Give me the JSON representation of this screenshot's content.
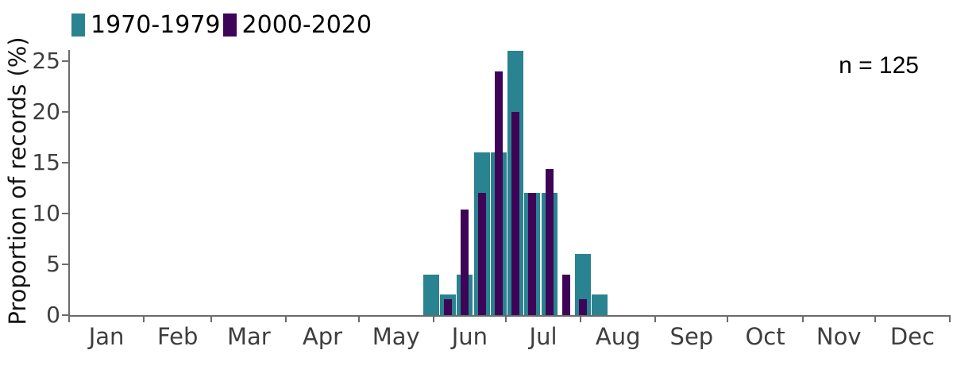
{
  "figure": {
    "ylabel": "Proportion of records (%)",
    "annotation": "n = 125"
  },
  "legend": {
    "items": [
      {
        "label": "1970-1979",
        "color": "#2a8390"
      },
      {
        "label": "2000-2020",
        "color": "#3e0458"
      }
    ]
  },
  "chart_data": {
    "type": "bar",
    "title": "",
    "xlabel": "",
    "ylabel": "Proportion of records (%)",
    "annotation": "n = 125",
    "legend_position": "top-left",
    "grid": false,
    "x_axis": "day of year (Jan–Dec), weekly bins",
    "x_bin_center_days": [
      151,
      158,
      165,
      172,
      179,
      186,
      193,
      200,
      207,
      214,
      221
    ],
    "x_bin_width_days": 7,
    "series": [
      {
        "name": "1970-1979",
        "color": "#2a8390",
        "values": [
          4,
          2,
          4,
          16,
          16,
          26,
          12,
          12,
          0,
          6,
          2
        ]
      },
      {
        "name": "2000-2020",
        "color": "#3e0458",
        "values": [
          0,
          1.6,
          10.4,
          12,
          24,
          20,
          12,
          14.4,
          4,
          1.6,
          0
        ]
      }
    ],
    "y_ticks": [
      0,
      5,
      10,
      15,
      20,
      25
    ],
    "ylim": [
      0,
      26.2
    ],
    "x_tick_days": [
      1,
      32,
      60,
      91,
      121,
      152,
      182,
      213,
      244,
      274,
      305,
      335,
      366
    ],
    "x_tick_labels": [
      "Jan",
      "Feb",
      "Mar",
      "Apr",
      "May",
      "Jun",
      "Jul",
      "Aug",
      "Sep",
      "Oct",
      "Nov",
      "Dec"
    ]
  },
  "colors": {
    "axis": "#6b6b6b",
    "tick_label": "#3e3e3e",
    "ytitle": "#141414",
    "text": "#000000",
    "background": "#ffffff"
  }
}
